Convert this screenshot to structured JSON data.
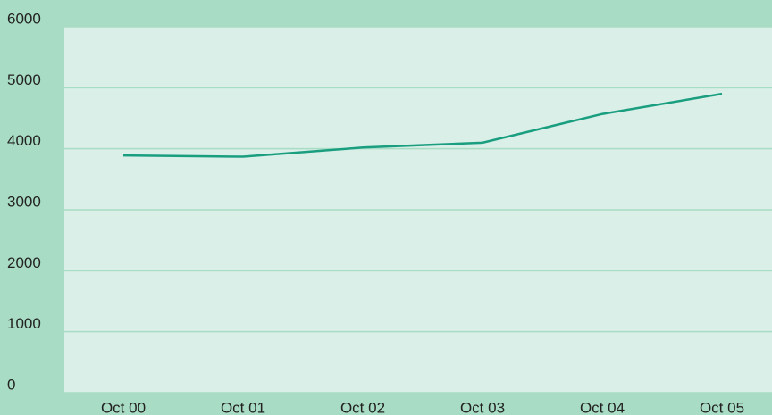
{
  "chart_data": {
    "type": "line",
    "categories": [
      "Oct 00",
      "Oct 01",
      "Oct 02",
      "Oct 03",
      "Oct 04",
      "Oct 05"
    ],
    "series": [
      {
        "color": "#1a9e80",
        "values": [
          3890,
          3870,
          4020,
          4100,
          4570,
          4900
        ]
      }
    ],
    "ylim": [
      0,
      6000
    ],
    "yticks": [
      0,
      1000,
      2000,
      3000,
      4000,
      5000,
      6000
    ],
    "grid": true
  }
}
